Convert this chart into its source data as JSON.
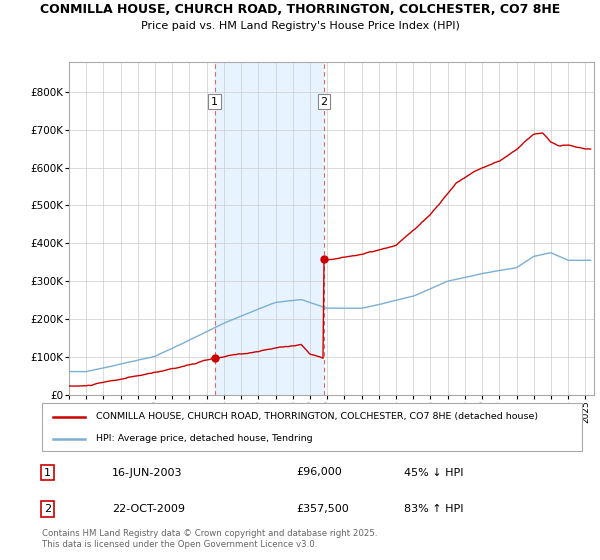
{
  "title": "CONMILLA HOUSE, CHURCH ROAD, THORRINGTON, COLCHESTER, CO7 8HE",
  "subtitle": "Price paid vs. HM Land Registry's House Price Index (HPI)",
  "legend_label_red": "CONMILLA HOUSE, CHURCH ROAD, THORRINGTON, COLCHESTER, CO7 8HE (detached house)",
  "legend_label_blue": "HPI: Average price, detached house, Tendring",
  "annotation1_date": "16-JUN-2003",
  "annotation1_price": "£96,000",
  "annotation1_hpi": "45% ↓ HPI",
  "annotation2_date": "22-OCT-2009",
  "annotation2_price": "£357,500",
  "annotation2_hpi": "83% ↑ HPI",
  "footer": "Contains HM Land Registry data © Crown copyright and database right 2025.\nThis data is licensed under the Open Government Licence v3.0.",
  "red_color": "#cc0000",
  "blue_color": "#7ab0d4",
  "background_color": "#ffffff",
  "grid_color": "#cccccc",
  "shade_color": "#ddeeff",
  "vline_color": "#dd6666",
  "ylim": [
    0,
    880000
  ],
  "yticks": [
    0,
    100000,
    200000,
    300000,
    400000,
    500000,
    600000,
    700000,
    800000
  ],
  "ytick_labels": [
    "£0",
    "£100K",
    "£200K",
    "£300K",
    "£400K",
    "£500K",
    "£600K",
    "£700K",
    "£800K"
  ],
  "sale1_x": 2003.46,
  "sale1_y": 96000,
  "sale2_x": 2009.81,
  "sale2_y": 357500,
  "xmin": 1995,
  "xmax": 2025.5
}
